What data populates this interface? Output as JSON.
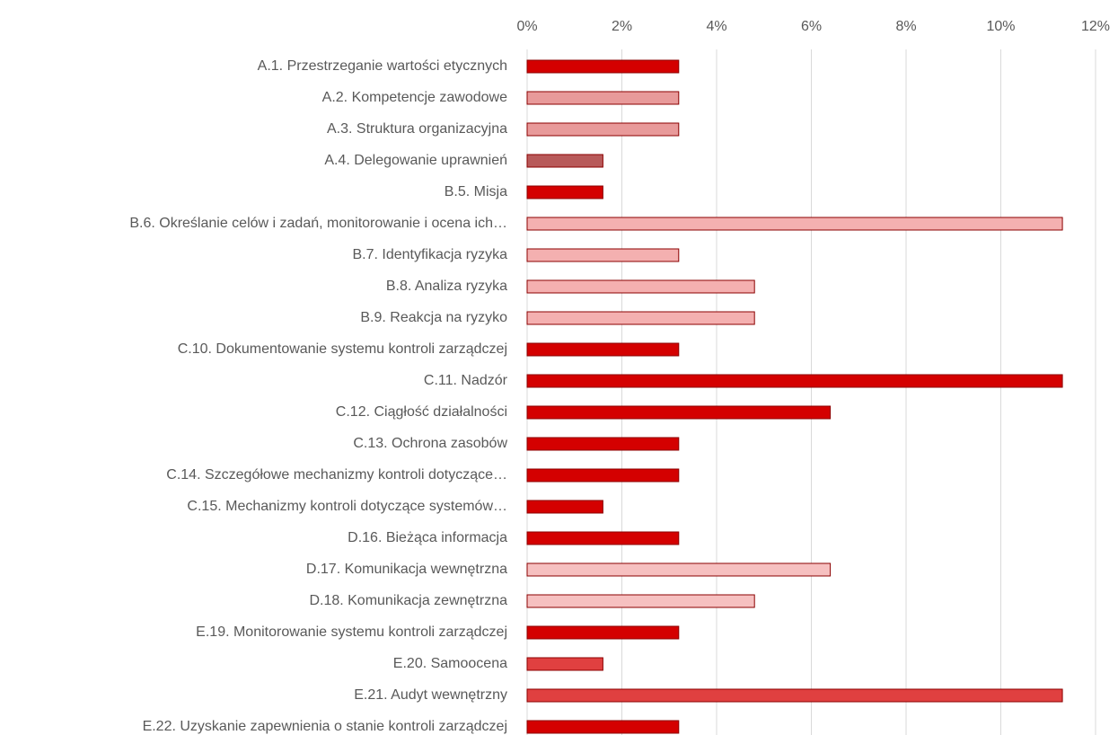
{
  "chart_data": {
    "type": "hbar",
    "categories": [
      "A.1. Przestrzeganie wartości etycznych",
      "A.2. Kompetencje zawodowe",
      "A.3. Struktura organizacyjna",
      "A.4. Delegowanie uprawnień",
      "B.5. Misja",
      "B.6. Określanie celów i zadań, monitorowanie i ocena ich…",
      "B.7. Identyfikacja ryzyka",
      "B.8. Analiza ryzyka",
      "B.9. Reakcja na ryzyko",
      "C.10. Dokumentowanie systemu kontroli zarządczej",
      "C.11. Nadzór",
      "C.12. Ciągłość działalności",
      "C.13. Ochrona zasobów",
      "C.14. Szczegółowe mechanizmy kontroli dotyczące…",
      "C.15. Mechanizmy kontroli dotyczące systemów…",
      "D.16. Bieżąca informacja",
      "D.17. Komunikacja wewnętrzna",
      "D.18. Komunikacja zewnętrzna",
      "E.19. Monitorowanie systemu kontroli zarządczej",
      "E.20. Samoocena",
      "E.21. Audyt wewnętrzny",
      "E.22. Uzyskanie zapewnienia o stanie kontroli zarządczej"
    ],
    "values": [
      3.2,
      3.2,
      3.2,
      1.6,
      1.6,
      11.3,
      3.2,
      4.8,
      4.8,
      3.2,
      11.3,
      6.4,
      3.2,
      3.2,
      1.6,
      3.2,
      6.4,
      4.8,
      3.2,
      1.6,
      11.3,
      3.2
    ],
    "colors": [
      "#d40000",
      "#e89a9a",
      "#e89a9a",
      "#b85a5a",
      "#d40000",
      "#f4b0b0",
      "#f4b0b0",
      "#f4b0b0",
      "#f4b0b0",
      "#d40000",
      "#d40000",
      "#d40000",
      "#d40000",
      "#d40000",
      "#d40000",
      "#d40000",
      "#f6c0c0",
      "#f6c0c0",
      "#d40000",
      "#e04040",
      "#e04040",
      "#d40000"
    ],
    "xlim": [
      0,
      12
    ],
    "xticks": [
      {
        "value": 0,
        "label": "0%"
      },
      {
        "value": 2,
        "label": "2%"
      },
      {
        "value": 4,
        "label": "4%"
      },
      {
        "value": 6,
        "label": "6%"
      },
      {
        "value": 8,
        "label": "8%"
      },
      {
        "value": 10,
        "label": "10%"
      },
      {
        "value": 12,
        "label": "12%"
      }
    ],
    "grid": true
  }
}
